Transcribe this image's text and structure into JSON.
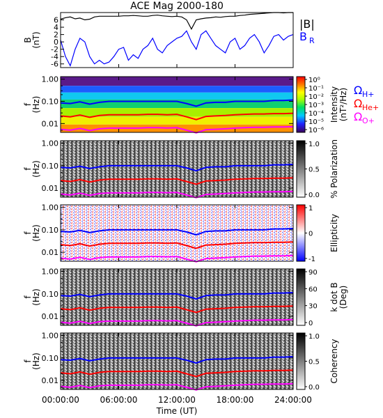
{
  "chart_data": {
    "type": "line",
    "title": "ACE Mag 2000-180",
    "xlabel": "Time (UT)",
    "x_ticks": [
      "00:00:00",
      "06:00:00",
      "12:00:00",
      "18:00:00",
      "24:00:00"
    ],
    "xlim": [
      0,
      24
    ],
    "panels": [
      {
        "id": "b-field",
        "ylabel": "B",
        "yunit": "(nT)",
        "ylim": [
          -7,
          8
        ],
        "y_ticks": [
          "6",
          "4",
          "2",
          "0",
          "-2",
          "-4",
          "-6"
        ],
        "legend": [
          "|B|",
          "B"
        ],
        "legend_sub": "R",
        "series": [
          {
            "name": "|B|",
            "color": "#000000",
            "x": [
              0,
              0.5,
              1,
              1.5,
              2,
              2.5,
              3,
              3.5,
              4,
              4.5,
              5,
              5.5,
              6,
              6.5,
              7,
              7.5,
              8,
              8.5,
              9,
              9.5,
              10,
              10.5,
              11,
              11.5,
              12,
              12.5,
              13,
              13.5,
              14,
              14.5,
              15,
              15.5,
              16,
              16.5,
              17,
              17.5,
              18,
              18.5,
              19,
              19.5,
              20,
              20.5,
              21,
              21.5,
              22,
              22.5,
              23,
              23.5,
              24
            ],
            "values": [
              6.2,
              6.6,
              6.8,
              6.3,
              6.5,
              6.0,
              6.2,
              6.8,
              7.0,
              7.0,
              7.0,
              7.0,
              7.0,
              7.1,
              7.1,
              7.2,
              7.1,
              7.0,
              7.0,
              7.2,
              7.3,
              7.1,
              7.0,
              6.9,
              7.0,
              6.8,
              6.0,
              3.5,
              6.0,
              6.3,
              6.5,
              6.6,
              6.8,
              6.7,
              6.9,
              7.0,
              7.0,
              7.2,
              7.3,
              7.5,
              7.6,
              7.7,
              7.8,
              7.9,
              8.0,
              8.0,
              7.9,
              8.0,
              8.0
            ]
          },
          {
            "name": "B_R",
            "color": "#0000ff",
            "x": [
              0,
              0.5,
              1,
              1.5,
              2,
              2.5,
              3,
              3.5,
              4,
              4.5,
              5,
              5.5,
              6,
              6.5,
              7,
              7.5,
              8,
              8.5,
              9,
              9.5,
              10,
              10.5,
              11,
              11.5,
              12,
              12.5,
              13,
              13.5,
              14,
              14.5,
              15,
              15.5,
              16,
              16.5,
              17,
              17.5,
              18,
              18.5,
              19,
              19.5,
              20,
              20.5,
              21,
              21.5,
              22,
              22.5,
              23,
              23.5,
              24
            ],
            "values": [
              0.5,
              -4.0,
              -6.5,
              -2.0,
              1.0,
              0.0,
              -4.0,
              -6.0,
              -5.0,
              -6.0,
              -5.5,
              -4.0,
              -2.0,
              -1.5,
              -5.0,
              -3.5,
              -4.5,
              -2.0,
              -1.0,
              1.0,
              -2.0,
              -3.0,
              -1.0,
              0.0,
              1.0,
              1.5,
              3.0,
              0.0,
              -2.0,
              2.0,
              3.0,
              1.0,
              -1.0,
              -2.0,
              -3.0,
              0.0,
              1.0,
              -2.0,
              -1.0,
              1.0,
              2.0,
              0.0,
              -3.0,
              -1.0,
              1.5,
              2.0,
              0.5,
              1.5,
              2.0
            ]
          }
        ]
      },
      {
        "id": "intensity",
        "ylabel": "f",
        "yunit": "(Hz)",
        "yscale": "log",
        "ylim": [
          0.004,
          1.3
        ],
        "y_ticks": [
          "1.00",
          "0.10",
          "0.01"
        ],
        "colorbar_label": "Intensity",
        "colorbar_unit": "(nT²/Hz)",
        "colorbar_ticks": [
          "10⁰",
          "10⁻¹",
          "10⁻²",
          "10⁻³",
          "10⁻⁴",
          "10⁻⁵",
          "10⁻⁶"
        ],
        "colormap": "rainbow",
        "legend": [
          "Ω",
          "Ω",
          "Ω"
        ],
        "legend_sub": [
          "H+",
          "He+",
          "O+"
        ],
        "legend_colors": [
          "#0000ff",
          "#ff0000",
          "#ff00ff"
        ]
      },
      {
        "id": "polarization",
        "ylabel": "f",
        "yunit": "(Hz)",
        "yscale": "log",
        "ylim": [
          0.004,
          1.3
        ],
        "y_ticks": [
          "1.00",
          "0.10",
          "0.01"
        ],
        "colorbar_label": "% Polarization",
        "colorbar_ticks": [
          "1.0",
          "0.5",
          "0.0"
        ],
        "colormap": "gray"
      },
      {
        "id": "ellipticity",
        "ylabel": "f",
        "yunit": "(Hz)",
        "yscale": "log",
        "ylim": [
          0.004,
          1.3
        ],
        "y_ticks": [
          "1.00",
          "0.10",
          "0.01"
        ],
        "colorbar_label": "Ellipticity",
        "colorbar_ticks": [
          "1",
          "0",
          "-1"
        ],
        "colormap": "bluewhitered"
      },
      {
        "id": "kdotb",
        "ylabel": "f",
        "yunit": "(Hz)",
        "yscale": "log",
        "ylim": [
          0.004,
          1.3
        ],
        "y_ticks": [
          "1.00",
          "0.10",
          "0.01"
        ],
        "colorbar_label": "k dot B",
        "colorbar_unit": "(Deg)",
        "colorbar_ticks": [
          "90",
          "60",
          "30",
          "0"
        ],
        "colormap": "gray"
      },
      {
        "id": "coherency",
        "ylabel": "f",
        "yunit": "(Hz)",
        "yscale": "log",
        "ylim": [
          0.004,
          1.3
        ],
        "y_ticks": [
          "1.00",
          "0.10",
          "0.01"
        ],
        "colorbar_label": "Coherency",
        "colorbar_ticks": [
          "1.0",
          "0.5",
          "0.0"
        ],
        "colormap": "gray"
      }
    ],
    "gyro_lines": {
      "x": [
        0,
        1,
        2,
        3,
        4,
        5,
        6,
        7,
        8,
        9,
        10,
        11,
        12,
        13,
        14,
        15,
        16,
        17,
        18,
        19,
        20,
        21,
        22,
        23,
        24
      ],
      "H+": [
        0.085,
        0.08,
        0.095,
        0.075,
        0.09,
        0.1,
        0.1,
        0.1,
        0.1,
        0.1,
        0.1,
        0.1,
        0.1,
        0.08,
        0.06,
        0.085,
        0.09,
        0.09,
        0.1,
        0.1,
        0.1,
        0.1,
        0.11,
        0.11,
        0.115
      ],
      "He+": [
        0.022,
        0.02,
        0.024,
        0.019,
        0.023,
        0.025,
        0.025,
        0.025,
        0.025,
        0.026,
        0.026,
        0.025,
        0.026,
        0.02,
        0.015,
        0.021,
        0.022,
        0.023,
        0.025,
        0.026,
        0.027,
        0.027,
        0.028,
        0.028,
        0.029
      ],
      "O+": [
        0.0055,
        0.005,
        0.006,
        0.0048,
        0.0058,
        0.0062,
        0.0062,
        0.0062,
        0.0062,
        0.0065,
        0.0065,
        0.0063,
        0.0065,
        0.005,
        0.0038,
        0.0053,
        0.0055,
        0.0058,
        0.0062,
        0.0065,
        0.0068,
        0.0068,
        0.007,
        0.007,
        0.0072
      ],
      "colors": {
        "H+": "#0000ff",
        "He+": "#ff0000",
        "O+": "#ff00ff"
      }
    }
  }
}
